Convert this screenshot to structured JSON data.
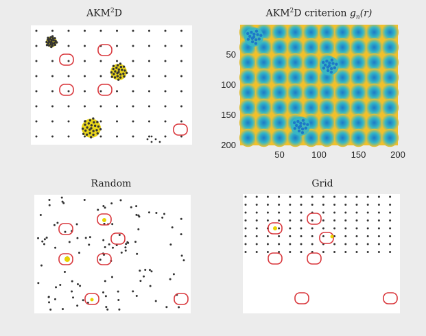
{
  "panels": {
    "akm2d": {
      "title_html": "AKM<sup>2</sup>D"
    },
    "criterion": {
      "title_prefix": "AKM",
      "title_sup": "2",
      "title_mid": "D criterion ",
      "title_math": "g",
      "title_sub": "n",
      "title_suffix": "(r)",
      "y_ticks": [
        "50",
        "100",
        "150",
        "200"
      ],
      "x_ticks": [
        "50",
        "100",
        "150",
        "200"
      ]
    },
    "random": {
      "title": "Random"
    },
    "grid": {
      "title": "Grid"
    }
  },
  "colors": {
    "target_ring": "#d9363b",
    "dot": "#333333",
    "highlight": "#e8d200",
    "heat_low": "#1d78c8",
    "heat_mid": "#35b7c5",
    "heat_high": "#f2c02a"
  }
}
